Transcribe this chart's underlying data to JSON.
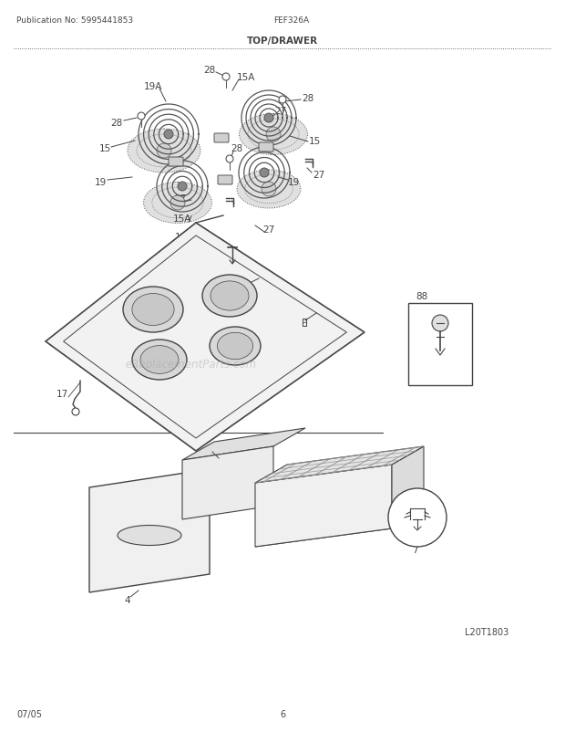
{
  "pub_no": "Publication No: 5995441853",
  "model": "FEF326A",
  "title": "TOP/DRAWER",
  "footer_left": "07/05",
  "footer_center": "6",
  "footer_right": "L20T1803",
  "watermark": "eReplacementParts.com",
  "bg_color": "#ffffff",
  "line_color": "#444444",
  "burner_color": "#555555",
  "cooktop_fill": "#f0f0f0",
  "drawer_fill": "#eeeeee"
}
